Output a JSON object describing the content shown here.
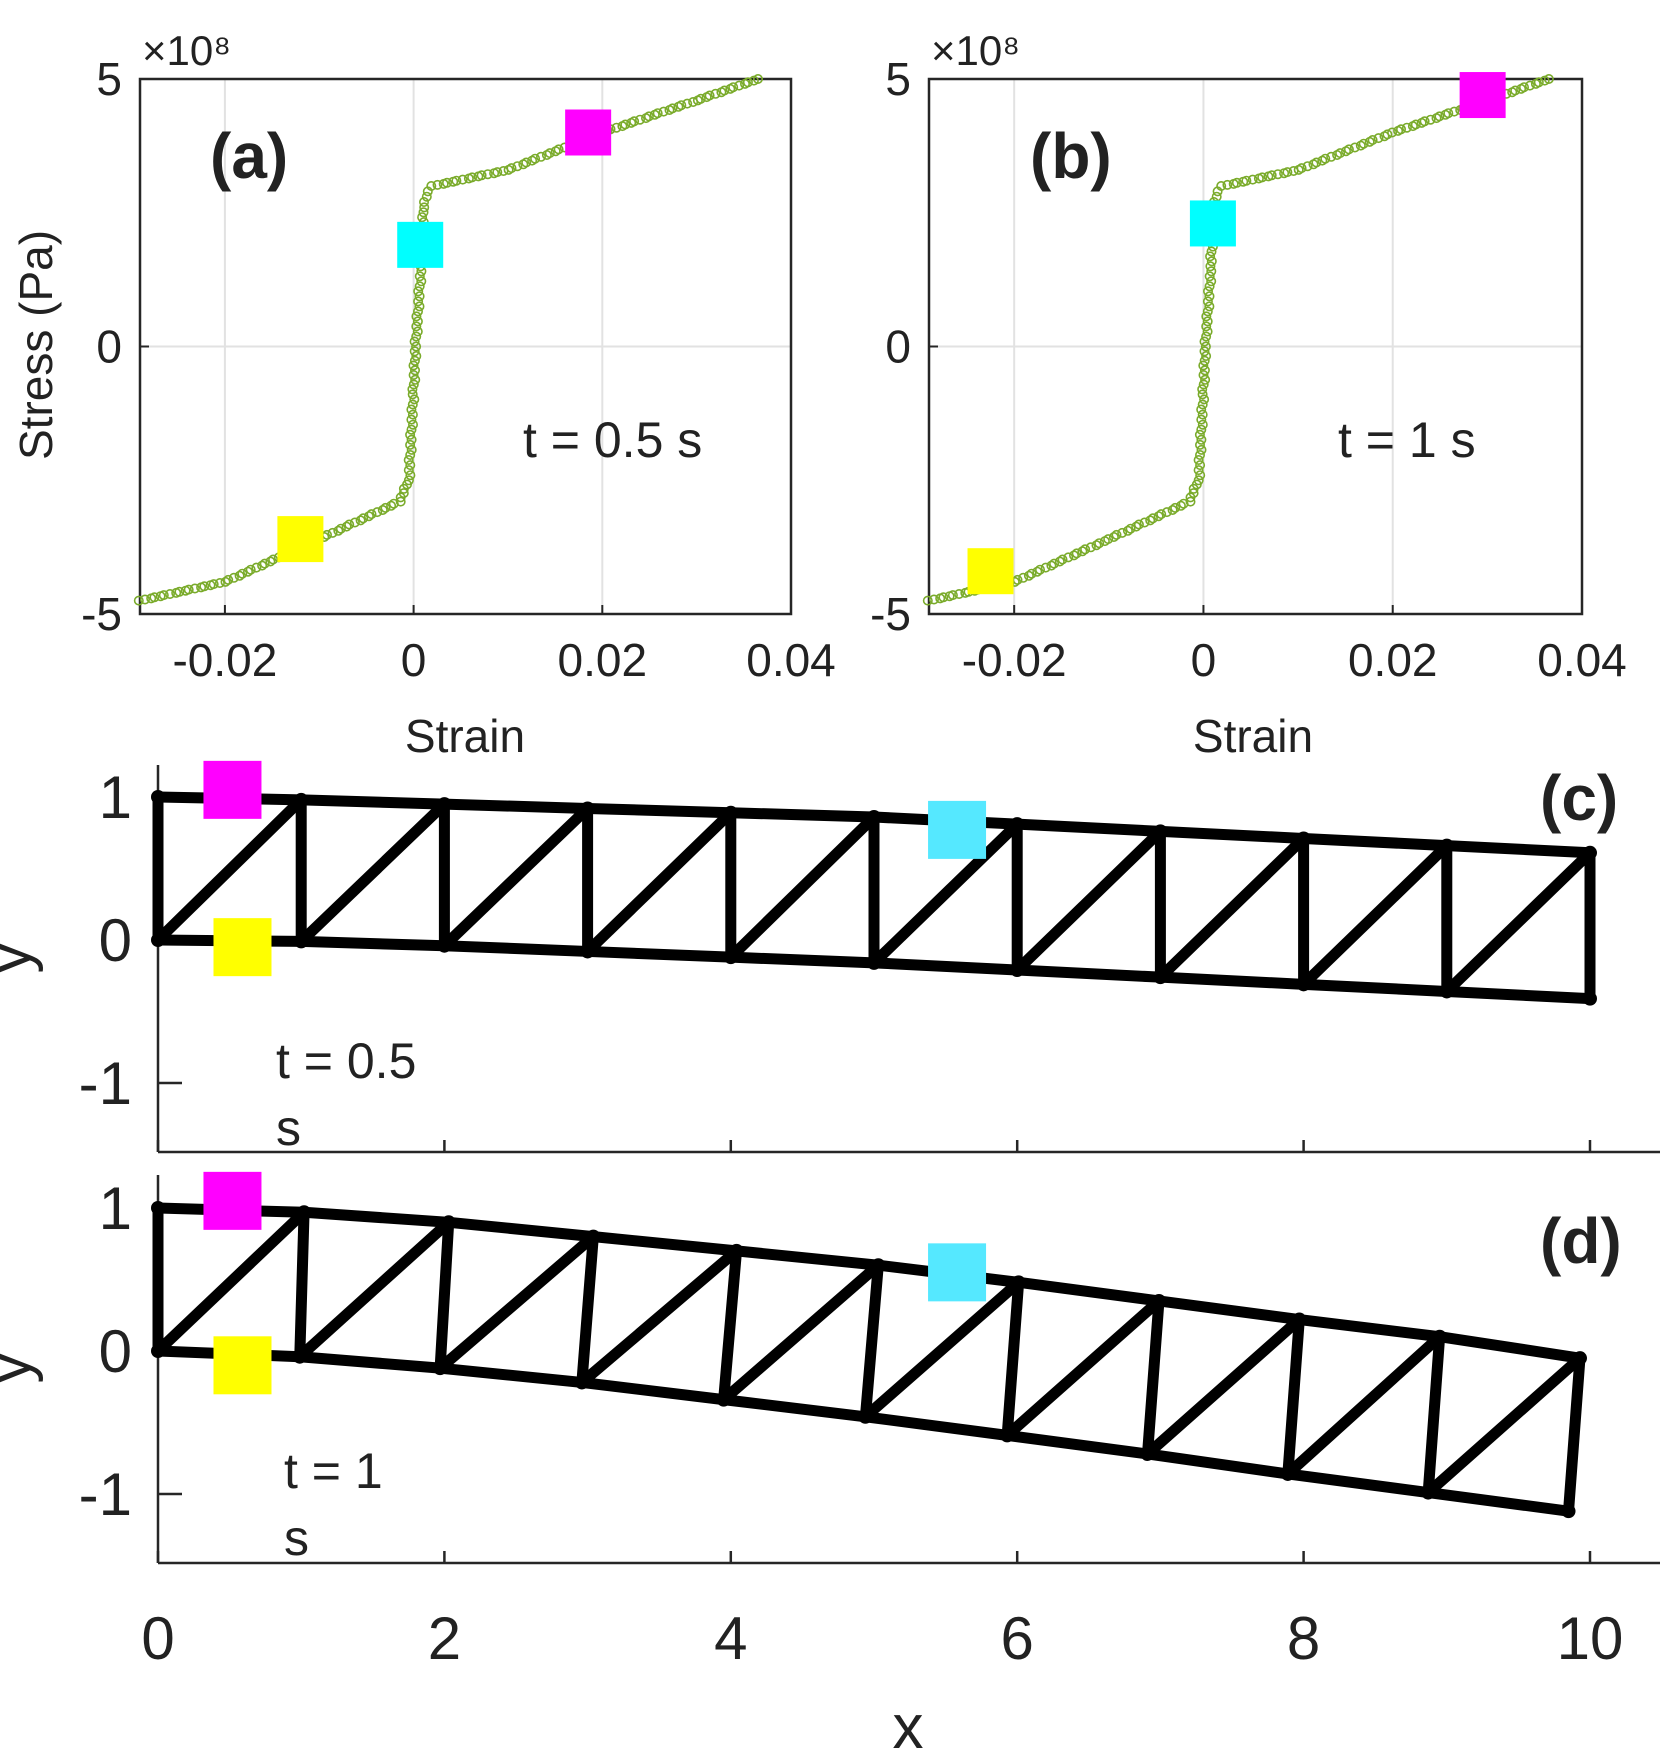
{
  "chart_data": [
    {
      "id": "a",
      "type": "scatter",
      "panel_label": "(a)",
      "annotation": "t = 0.5 s",
      "xlabel": "Strain",
      "ylabel": "Stress (Pa)",
      "y_exponent_label": "×10⁸",
      "xlim": [
        -0.029,
        0.04
      ],
      "ylim": [
        -5,
        5
      ],
      "xticks": [
        -0.02,
        0,
        0.02,
        0.04
      ],
      "xtick_labels": [
        "-0.02",
        "0",
        "0.02",
        "0.04"
      ],
      "yticks": [
        -5,
        0,
        5
      ],
      "ytick_labels": [
        "-5",
        "0",
        "5"
      ],
      "grid": true,
      "series_color": "#7aab2b",
      "curve": [
        [
          -0.029,
          -4.75
        ],
        [
          -0.02,
          -4.4
        ],
        [
          -0.01,
          -3.6
        ],
        [
          -0.0015,
          -2.9
        ],
        [
          -0.0005,
          -2.5
        ],
        [
          0.0,
          -0.8
        ],
        [
          0.0002,
          0.0
        ],
        [
          0.0008,
          1.5
        ],
        [
          0.001,
          2.6
        ],
        [
          0.0015,
          2.9
        ],
        [
          0.002,
          3.0
        ],
        [
          0.01,
          3.3
        ],
        [
          0.02,
          4.0
        ],
        [
          0.03,
          4.6
        ],
        [
          0.0365,
          5.0
        ]
      ],
      "markers": [
        {
          "name": "yellow",
          "x": -0.012,
          "y": -3.6,
          "color": "#ffff00"
        },
        {
          "name": "cyan",
          "x": 0.0007,
          "y": 1.9,
          "color": "#00ffff"
        },
        {
          "name": "magenta",
          "x": 0.0185,
          "y": 4.0,
          "color": "#ff00ff"
        }
      ]
    },
    {
      "id": "b",
      "type": "scatter",
      "panel_label": "(b)",
      "annotation": "t = 1 s",
      "xlabel": "Strain",
      "ylabel": "",
      "y_exponent_label": "×10⁸",
      "xlim": [
        -0.029,
        0.04
      ],
      "ylim": [
        -5,
        5
      ],
      "xticks": [
        -0.02,
        0,
        0.02,
        0.04
      ],
      "xtick_labels": [
        "-0.02",
        "0",
        "0.02",
        "0.04"
      ],
      "yticks": [
        -5,
        0,
        5
      ],
      "ytick_labels": [
        "-5",
        "0",
        "5"
      ],
      "grid": true,
      "series_color": "#7aab2b",
      "curve": [
        [
          -0.029,
          -4.75
        ],
        [
          -0.02,
          -4.4
        ],
        [
          -0.01,
          -3.6
        ],
        [
          -0.0015,
          -2.9
        ],
        [
          -0.0005,
          -2.5
        ],
        [
          0.0,
          -0.8
        ],
        [
          0.0002,
          0.0
        ],
        [
          0.0008,
          1.5
        ],
        [
          0.001,
          2.6
        ],
        [
          0.0015,
          2.9
        ],
        [
          0.002,
          3.0
        ],
        [
          0.01,
          3.3
        ],
        [
          0.02,
          4.0
        ],
        [
          0.03,
          4.6
        ],
        [
          0.0365,
          5.0
        ]
      ],
      "markers": [
        {
          "name": "yellow",
          "x": -0.0225,
          "y": -4.2,
          "color": "#ffff00"
        },
        {
          "name": "cyan",
          "x": 0.001,
          "y": 2.3,
          "color": "#00ffff"
        },
        {
          "name": "magenta",
          "x": 0.0295,
          "y": 4.7,
          "color": "#ff00ff"
        }
      ]
    },
    {
      "id": "c",
      "type": "line",
      "panel_label": "(c)",
      "annotation": [
        "t = 0.5",
        "s"
      ],
      "xlabel": "",
      "ylabel": "y",
      "xlim": [
        0,
        10.5
      ],
      "ylim": [
        -1.5,
        1.1
      ],
      "xticks": [
        0,
        2,
        4,
        6,
        8,
        10
      ],
      "yticks": [
        -1,
        0,
        1
      ],
      "ytick_labels": [
        "-1",
        "0",
        "1"
      ],
      "top_nodes": [
        [
          0,
          1.0
        ],
        [
          1,
          0.98
        ],
        [
          2,
          0.95
        ],
        [
          3,
          0.92
        ],
        [
          4,
          0.89
        ],
        [
          5,
          0.86
        ],
        [
          6,
          0.81
        ],
        [
          7,
          0.76
        ],
        [
          8,
          0.71
        ],
        [
          9,
          0.66
        ],
        [
          10,
          0.61
        ]
      ],
      "bottom_nodes": [
        [
          0,
          0.0
        ],
        [
          1,
          -0.01
        ],
        [
          2,
          -0.04
        ],
        [
          3,
          -0.08
        ],
        [
          4,
          -0.12
        ],
        [
          5,
          -0.16
        ],
        [
          6,
          -0.21
        ],
        [
          7,
          -0.26
        ],
        [
          8,
          -0.31
        ],
        [
          9,
          -0.36
        ],
        [
          10,
          -0.41
        ]
      ],
      "markers": [
        {
          "name": "magenta",
          "x": 0.52,
          "y": 1.05,
          "color": "#ff00ff"
        },
        {
          "name": "cyan",
          "x": 5.58,
          "y": 0.77,
          "color": "#55e8ff"
        },
        {
          "name": "yellow",
          "x": 0.59,
          "y": -0.05,
          "color": "#ffff00"
        }
      ]
    },
    {
      "id": "d",
      "type": "line",
      "panel_label": "(d)",
      "annotation": [
        "t = 1",
        "s"
      ],
      "xlabel": "x",
      "ylabel": "y",
      "xlim": [
        0,
        10.5
      ],
      "ylim": [
        -1.5,
        1.1
      ],
      "xticks": [
        0,
        2,
        4,
        6,
        8,
        10
      ],
      "xtick_labels": [
        "0",
        "2",
        "4",
        "6",
        "8",
        "10"
      ],
      "yticks": [
        -1,
        0,
        1
      ],
      "ytick_labels": [
        "-1",
        "0",
        "1"
      ],
      "top_nodes": [
        [
          0,
          1.0
        ],
        [
          1.02,
          0.97
        ],
        [
          2.03,
          0.9
        ],
        [
          3.04,
          0.8
        ],
        [
          4.04,
          0.7
        ],
        [
          5.03,
          0.6
        ],
        [
          6.01,
          0.48
        ],
        [
          6.99,
          0.35
        ],
        [
          7.97,
          0.22
        ],
        [
          8.95,
          0.1
        ],
        [
          9.93,
          -0.05
        ]
      ],
      "bottom_nodes": [
        [
          0,
          0.0
        ],
        [
          0.99,
          -0.04
        ],
        [
          1.97,
          -0.12
        ],
        [
          2.96,
          -0.22
        ],
        [
          3.95,
          -0.34
        ],
        [
          4.94,
          -0.46
        ],
        [
          5.93,
          -0.59
        ],
        [
          6.91,
          -0.72
        ],
        [
          7.89,
          -0.86
        ],
        [
          8.87,
          -0.99
        ],
        [
          9.85,
          -1.12
        ]
      ],
      "markers": [
        {
          "name": "magenta",
          "x": 0.52,
          "y": 1.05,
          "color": "#ff00ff"
        },
        {
          "name": "cyan",
          "x": 5.58,
          "y": 0.55,
          "color": "#55e8ff"
        },
        {
          "name": "yellow",
          "x": 0.59,
          "y": -0.1,
          "color": "#ffff00"
        }
      ]
    }
  ]
}
